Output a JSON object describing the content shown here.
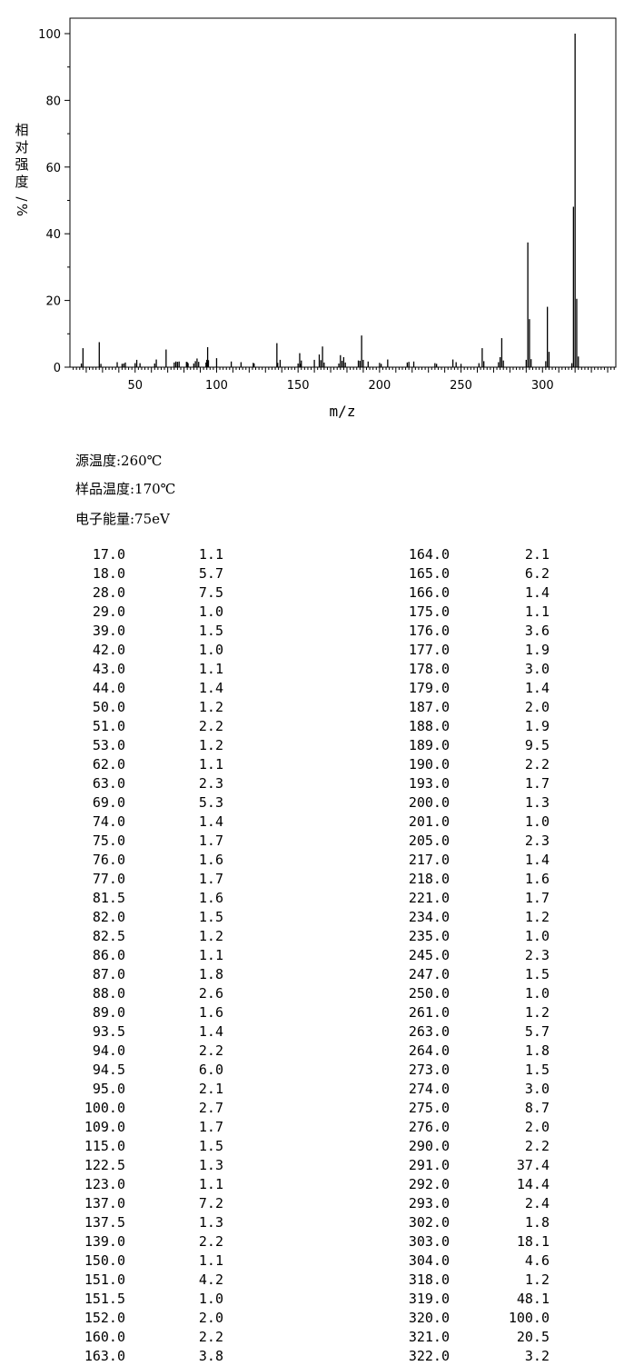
{
  "chart_data": {
    "type": "bar",
    "xlabel": "m/z",
    "ylabel": "相对强度/%",
    "xlim": [
      10,
      345
    ],
    "ylim": [
      0,
      100
    ],
    "x_ticks": [
      50,
      100,
      150,
      200,
      250,
      300
    ],
    "y_ticks": [
      0,
      20,
      40,
      60,
      80,
      100
    ],
    "grid": false,
    "peaks": [
      [
        17.0,
        1.1
      ],
      [
        18.0,
        5.7
      ],
      [
        28.0,
        7.5
      ],
      [
        29.0,
        1.0
      ],
      [
        39.0,
        1.5
      ],
      [
        42.0,
        1.0
      ],
      [
        43.0,
        1.1
      ],
      [
        44.0,
        1.4
      ],
      [
        50.0,
        1.2
      ],
      [
        51.0,
        2.2
      ],
      [
        53.0,
        1.2
      ],
      [
        62.0,
        1.1
      ],
      [
        63.0,
        2.3
      ],
      [
        69.0,
        5.3
      ],
      [
        74.0,
        1.4
      ],
      [
        75.0,
        1.7
      ],
      [
        76.0,
        1.6
      ],
      [
        77.0,
        1.7
      ],
      [
        81.5,
        1.6
      ],
      [
        82.0,
        1.5
      ],
      [
        82.5,
        1.2
      ],
      [
        86.0,
        1.1
      ],
      [
        87.0,
        1.8
      ],
      [
        88.0,
        2.6
      ],
      [
        89.0,
        1.6
      ],
      [
        93.5,
        1.4
      ],
      [
        94.0,
        2.2
      ],
      [
        94.5,
        6.0
      ],
      [
        95.0,
        2.1
      ],
      [
        100.0,
        2.7
      ],
      [
        109.0,
        1.7
      ],
      [
        115.0,
        1.5
      ],
      [
        122.5,
        1.3
      ],
      [
        123.0,
        1.1
      ],
      [
        137.0,
        7.2
      ],
      [
        137.5,
        1.3
      ],
      [
        139.0,
        2.2
      ],
      [
        150.0,
        1.1
      ],
      [
        151.0,
        4.2
      ],
      [
        151.5,
        1.0
      ],
      [
        152.0,
        2.0
      ],
      [
        160.0,
        2.2
      ],
      [
        163.0,
        3.8
      ],
      [
        164.0,
        2.1
      ],
      [
        165.0,
        6.2
      ],
      [
        166.0,
        1.4
      ],
      [
        175.0,
        1.1
      ],
      [
        176.0,
        3.6
      ],
      [
        177.0,
        1.9
      ],
      [
        178.0,
        3.0
      ],
      [
        179.0,
        1.4
      ],
      [
        187.0,
        2.0
      ],
      [
        188.0,
        1.9
      ],
      [
        189.0,
        9.5
      ],
      [
        190.0,
        2.2
      ],
      [
        193.0,
        1.7
      ],
      [
        200.0,
        1.3
      ],
      [
        201.0,
        1.0
      ],
      [
        205.0,
        2.3
      ],
      [
        217.0,
        1.4
      ],
      [
        218.0,
        1.6
      ],
      [
        221.0,
        1.7
      ],
      [
        234.0,
        1.2
      ],
      [
        235.0,
        1.0
      ],
      [
        245.0,
        2.3
      ],
      [
        247.0,
        1.5
      ],
      [
        250.0,
        1.0
      ],
      [
        261.0,
        1.2
      ],
      [
        263.0,
        5.7
      ],
      [
        264.0,
        1.8
      ],
      [
        273.0,
        1.5
      ],
      [
        274.0,
        3.0
      ],
      [
        275.0,
        8.7
      ],
      [
        276.0,
        2.0
      ],
      [
        290.0,
        2.2
      ],
      [
        291.0,
        37.4
      ],
      [
        292.0,
        14.4
      ],
      [
        293.0,
        2.4
      ],
      [
        302.0,
        1.8
      ],
      [
        303.0,
        18.1
      ],
      [
        304.0,
        4.6
      ],
      [
        318.0,
        1.2
      ],
      [
        319.0,
        48.1
      ],
      [
        320.0,
        100.0
      ],
      [
        321.0,
        20.5
      ],
      [
        322.0,
        3.2
      ]
    ]
  },
  "conditions": {
    "source_temp": "源温度:260℃",
    "sample_temp": "样品温度:170℃",
    "electron_energy": "电子能量:75eV"
  },
  "peak_table": {
    "left_mz": [
      "17.0",
      "18.0",
      "28.0",
      "29.0",
      "39.0",
      "42.0",
      "43.0",
      "44.0",
      "50.0",
      "51.0",
      "53.0",
      "62.0",
      "63.0",
      "69.0",
      "74.0",
      "75.0",
      "76.0",
      "77.0",
      "81.5",
      "82.0",
      "82.5",
      "86.0",
      "87.0",
      "88.0",
      "89.0",
      "93.5",
      "94.0",
      "94.5",
      "95.0",
      "100.0",
      "109.0",
      "115.0",
      "122.5",
      "123.0",
      "137.0",
      "137.5",
      "139.0",
      "150.0",
      "151.0",
      "151.5",
      "152.0",
      "160.0",
      "163.0"
    ],
    "left_int": [
      "1.1",
      "5.7",
      "7.5",
      "1.0",
      "1.5",
      "1.0",
      "1.1",
      "1.4",
      "1.2",
      "2.2",
      "1.2",
      "1.1",
      "2.3",
      "5.3",
      "1.4",
      "1.7",
      "1.6",
      "1.7",
      "1.6",
      "1.5",
      "1.2",
      "1.1",
      "1.8",
      "2.6",
      "1.6",
      "1.4",
      "2.2",
      "6.0",
      "2.1",
      "2.7",
      "1.7",
      "1.5",
      "1.3",
      "1.1",
      "7.2",
      "1.3",
      "2.2",
      "1.1",
      "4.2",
      "1.0",
      "2.0",
      "2.2",
      "3.8"
    ],
    "right_mz": [
      "164.0",
      "165.0",
      "166.0",
      "175.0",
      "176.0",
      "177.0",
      "178.0",
      "179.0",
      "187.0",
      "188.0",
      "189.0",
      "190.0",
      "193.0",
      "200.0",
      "201.0",
      "205.0",
      "217.0",
      "218.0",
      "221.0",
      "234.0",
      "235.0",
      "245.0",
      "247.0",
      "250.0",
      "261.0",
      "263.0",
      "264.0",
      "273.0",
      "274.0",
      "275.0",
      "276.0",
      "290.0",
      "291.0",
      "292.0",
      "293.0",
      "302.0",
      "303.0",
      "304.0",
      "318.0",
      "319.0",
      "320.0",
      "321.0",
      "322.0"
    ],
    "right_int": [
      "2.1",
      "6.2",
      "1.4",
      "1.1",
      "3.6",
      "1.9",
      "3.0",
      "1.4",
      "2.0",
      "1.9",
      "9.5",
      "2.2",
      "1.7",
      "1.3",
      "1.0",
      "2.3",
      "1.4",
      "1.6",
      "1.7",
      "1.2",
      "1.0",
      "2.3",
      "1.5",
      "1.0",
      "1.2",
      "5.7",
      "1.8",
      "1.5",
      "3.0",
      "8.7",
      "2.0",
      "2.2",
      "37.4",
      "14.4",
      "2.4",
      "1.8",
      "18.1",
      "4.6",
      "1.2",
      "48.1",
      "100.0",
      "20.5",
      "3.2"
    ]
  }
}
